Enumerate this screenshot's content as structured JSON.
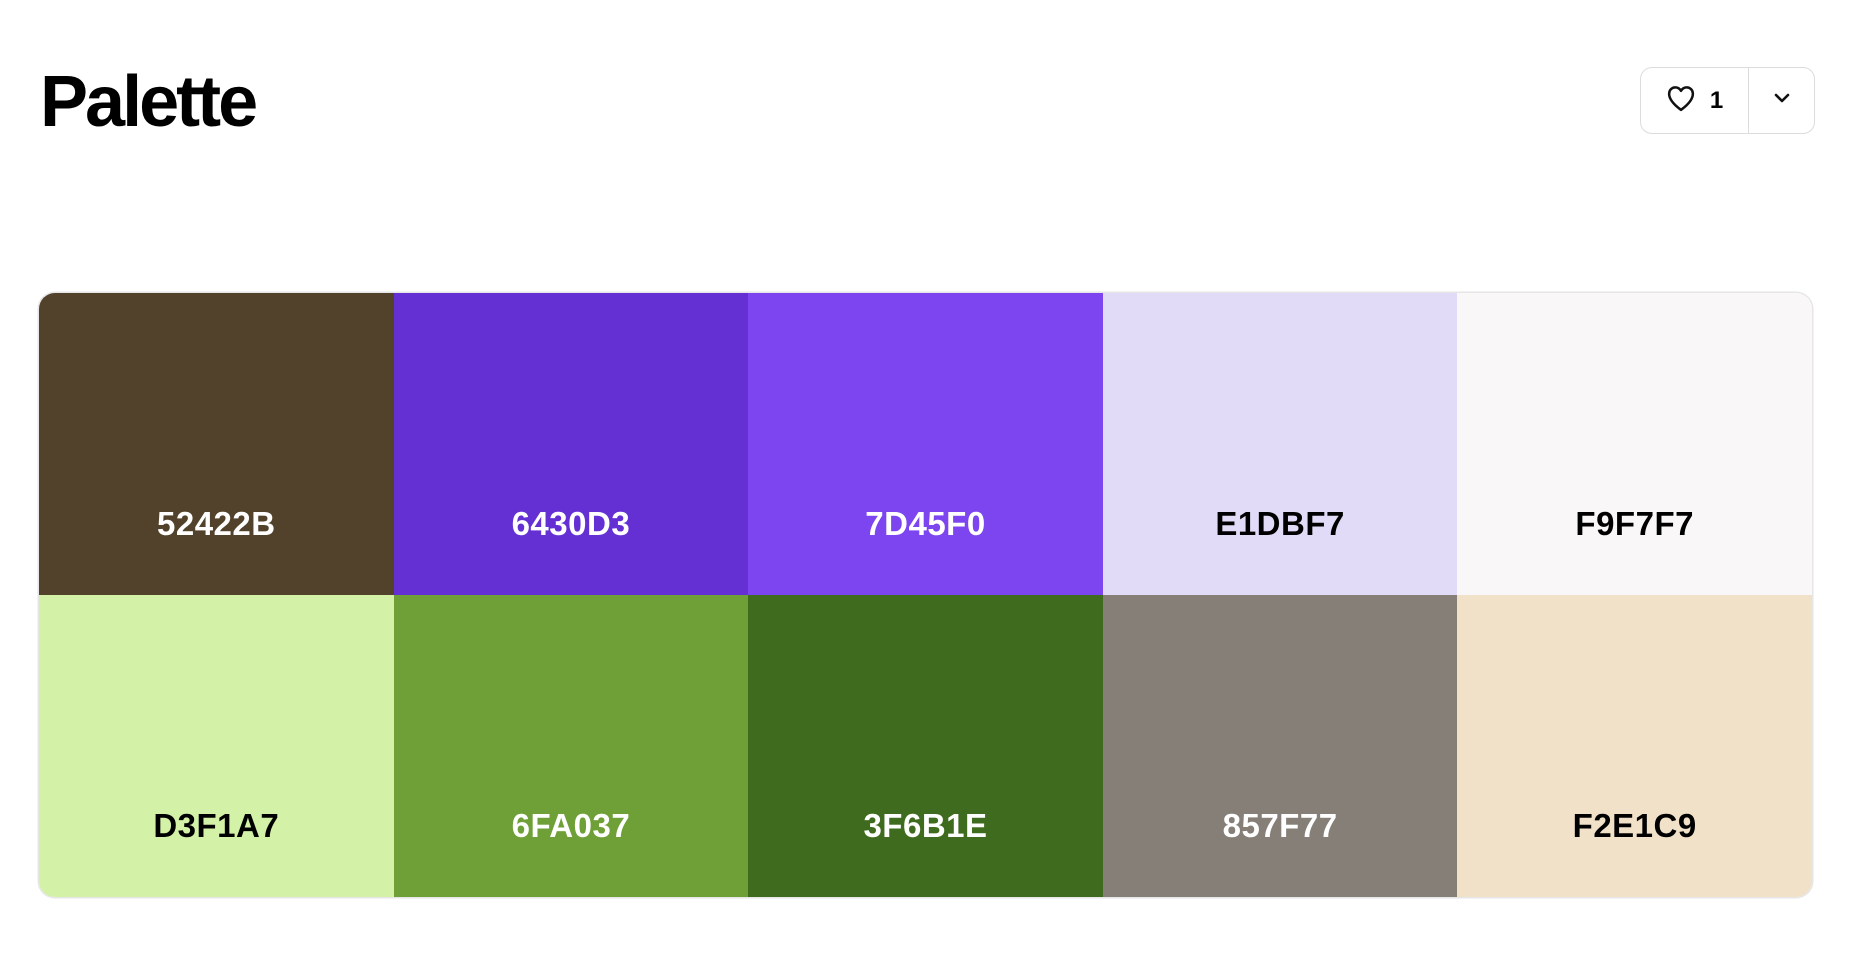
{
  "header": {
    "title": "Palette"
  },
  "actions": {
    "like_icon": "heart-icon",
    "like_count": "1",
    "menu_icon": "chevron-down-icon"
  },
  "palette": {
    "swatches": [
      {
        "hex": "52422B",
        "color": "#52422B",
        "text_color": "#FFFFFF"
      },
      {
        "hex": "6430D3",
        "color": "#6430D3",
        "text_color": "#FFFFFF"
      },
      {
        "hex": "7D45F0",
        "color": "#7D45F0",
        "text_color": "#FFFFFF"
      },
      {
        "hex": "E1DBF7",
        "color": "#E1DBF7",
        "text_color": "#000000"
      },
      {
        "hex": "F9F7F7",
        "color": "#F9F7F7",
        "text_color": "#000000"
      },
      {
        "hex": "D3F1A7",
        "color": "#D3F1A7",
        "text_color": "#000000"
      },
      {
        "hex": "6FA037",
        "color": "#6FA037",
        "text_color": "#FFFFFF"
      },
      {
        "hex": "3F6B1E",
        "color": "#3F6B1E",
        "text_color": "#FFFFFF"
      },
      {
        "hex": "857F77",
        "color": "#857F77",
        "text_color": "#FFFFFF"
      },
      {
        "hex": "F2E1C9",
        "color": "#F2E1C9",
        "text_color": "#000000"
      }
    ]
  }
}
